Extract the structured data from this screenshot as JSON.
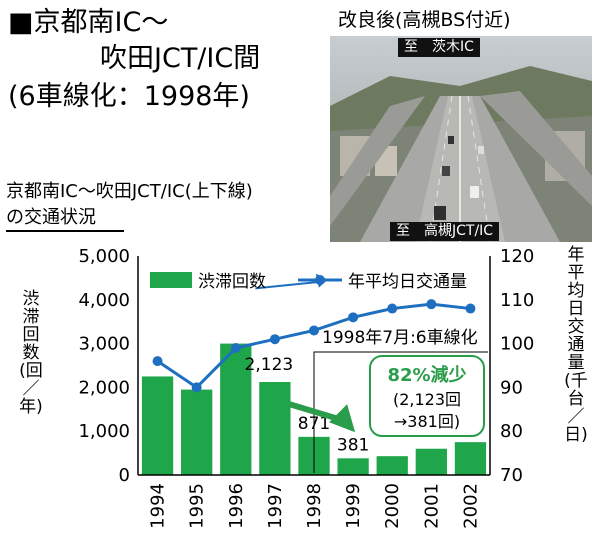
{
  "title": {
    "line1": "■京都南IC～",
    "line2": "吹田JCT/IC間",
    "line3": "(6車線化：1998年)"
  },
  "photo": {
    "caption": "改良後(高槻BS付近)",
    "top_sign": "至　茨木IC",
    "bottom_sign": "至　高槻JCT/IC"
  },
  "subtitle": {
    "line1": "京都南IC～吹田JCT/IC(上下線)",
    "line2": "の交通状況"
  },
  "chart_data": {
    "type": "bar",
    "categories": [
      "1994",
      "1995",
      "1996",
      "1997",
      "1998",
      "1999",
      "2000",
      "2001",
      "2002"
    ],
    "series": [
      {
        "name": "渋滞回数",
        "type": "bar",
        "axis": "left",
        "values": [
          2250,
          1950,
          3000,
          2123,
          871,
          381,
          430,
          600,
          750
        ]
      },
      {
        "name": "年平均日交通量",
        "type": "line",
        "axis": "right",
        "values": [
          96,
          90,
          99,
          101,
          103,
          106,
          108,
          109,
          108
        ]
      }
    ],
    "ylabel_left": "渋滞回数(回／年)",
    "ylabel_right": "年平均日交通量(千台／日)",
    "ylim_left": [
      0,
      5000
    ],
    "ylim_right": [
      70,
      120
    ],
    "yticks_left": [
      "0",
      "1,000",
      "2,000",
      "3,000",
      "4,000",
      "5,000"
    ],
    "yticks_right": [
      "70",
      "80",
      "90",
      "100",
      "110",
      "120"
    ],
    "data_labels": [
      {
        "category": "1997",
        "text": "2,123"
      },
      {
        "category": "1998",
        "text": "871"
      },
      {
        "category": "1999",
        "text": "381"
      }
    ],
    "annotations": {
      "event": "1998年7月:6車線化",
      "reduction_title": "82%減少",
      "reduction_line1": "(2,123回",
      "reduction_line2": "→381回)"
    },
    "legend_position": "top",
    "grid": false,
    "colors": {
      "bar": "#1fa64a",
      "line": "#1f6fc0",
      "accent": "#2a9d4a"
    }
  }
}
